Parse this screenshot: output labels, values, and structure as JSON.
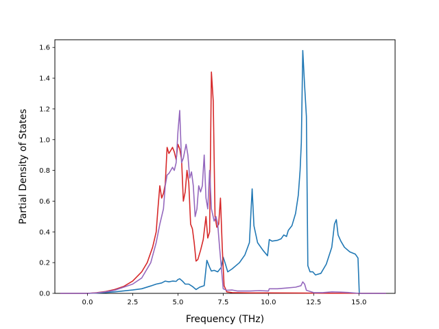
{
  "chart_data": {
    "type": "line",
    "title": "",
    "xlabel": "Frequency (THz)",
    "ylabel": "Partial Density of States",
    "xlim": [
      -1.8,
      17.0
    ],
    "ylim": [
      0.0,
      1.65
    ],
    "xticks": [
      0.0,
      2.5,
      5.0,
      7.5,
      10.0,
      12.5,
      15.0
    ],
    "xtick_labels": [
      "0.0",
      "2.5",
      "5.0",
      "7.5",
      "10.0",
      "12.5",
      "15.0"
    ],
    "yticks": [
      0.0,
      0.2,
      0.4,
      0.6,
      0.8,
      1.0,
      1.2,
      1.4,
      1.6
    ],
    "ytick_labels": [
      "0.0",
      "0.2",
      "0.4",
      "0.6",
      "0.8",
      "1.0",
      "1.2",
      "1.4",
      "1.6"
    ],
    "grid": false,
    "legend": false,
    "series": [
      {
        "color": "#1f77b4",
        "points": [
          [
            -1.5,
            0
          ],
          [
            0,
            0
          ],
          [
            0.5,
            0.002
          ],
          [
            1,
            0.006
          ],
          [
            1.5,
            0.01
          ],
          [
            2,
            0.016
          ],
          [
            2.5,
            0.022
          ],
          [
            3,
            0.03
          ],
          [
            3.5,
            0.048
          ],
          [
            3.8,
            0.06
          ],
          [
            4.1,
            0.068
          ],
          [
            4.3,
            0.08
          ],
          [
            4.5,
            0.075
          ],
          [
            4.7,
            0.08
          ],
          [
            4.9,
            0.078
          ],
          [
            5.0,
            0.09
          ],
          [
            5.1,
            0.095
          ],
          [
            5.25,
            0.08
          ],
          [
            5.4,
            0.06
          ],
          [
            5.6,
            0.06
          ],
          [
            5.8,
            0.045
          ],
          [
            6.0,
            0.025
          ],
          [
            6.2,
            0.04
          ],
          [
            6.45,
            0.05
          ],
          [
            6.6,
            0.215
          ],
          [
            6.75,
            0.17
          ],
          [
            6.85,
            0.145
          ],
          [
            7.0,
            0.15
          ],
          [
            7.2,
            0.14
          ],
          [
            7.4,
            0.17
          ],
          [
            7.5,
            0.235
          ],
          [
            7.6,
            0.2
          ],
          [
            7.75,
            0.14
          ],
          [
            8.0,
            0.16
          ],
          [
            8.4,
            0.2
          ],
          [
            8.7,
            0.25
          ],
          [
            8.95,
            0.33
          ],
          [
            9.1,
            0.68
          ],
          [
            9.2,
            0.44
          ],
          [
            9.4,
            0.33
          ],
          [
            9.7,
            0.28
          ],
          [
            9.95,
            0.245
          ],
          [
            10.05,
            0.35
          ],
          [
            10.2,
            0.34
          ],
          [
            10.5,
            0.345
          ],
          [
            10.7,
            0.355
          ],
          [
            10.85,
            0.38
          ],
          [
            11.0,
            0.37
          ],
          [
            11.1,
            0.41
          ],
          [
            11.3,
            0.44
          ],
          [
            11.5,
            0.52
          ],
          [
            11.65,
            0.64
          ],
          [
            11.75,
            0.8
          ],
          [
            11.82,
            0.98
          ],
          [
            11.9,
            1.58
          ],
          [
            12.0,
            1.35
          ],
          [
            12.1,
            1.15
          ],
          [
            12.18,
            0.18
          ],
          [
            12.3,
            0.14
          ],
          [
            12.45,
            0.14
          ],
          [
            12.6,
            0.12
          ],
          [
            12.9,
            0.13
          ],
          [
            13.2,
            0.19
          ],
          [
            13.5,
            0.3
          ],
          [
            13.65,
            0.45
          ],
          [
            13.75,
            0.48
          ],
          [
            13.85,
            0.38
          ],
          [
            14.0,
            0.34
          ],
          [
            14.2,
            0.3
          ],
          [
            14.5,
            0.27
          ],
          [
            14.8,
            0.255
          ],
          [
            14.95,
            0.23
          ],
          [
            15.02,
            0
          ],
          [
            16.5,
            0
          ]
        ]
      },
      {
        "color": "#d62728",
        "points": [
          [
            -1.5,
            0
          ],
          [
            0,
            0
          ],
          [
            0.5,
            0.004
          ],
          [
            1,
            0.012
          ],
          [
            1.5,
            0.025
          ],
          [
            2,
            0.045
          ],
          [
            2.5,
            0.08
          ],
          [
            3,
            0.14
          ],
          [
            3.3,
            0.2
          ],
          [
            3.6,
            0.3
          ],
          [
            3.8,
            0.4
          ],
          [
            3.9,
            0.56
          ],
          [
            4.0,
            0.7
          ],
          [
            4.1,
            0.62
          ],
          [
            4.2,
            0.65
          ],
          [
            4.3,
            0.71
          ],
          [
            4.4,
            0.95
          ],
          [
            4.5,
            0.91
          ],
          [
            4.6,
            0.93
          ],
          [
            4.7,
            0.95
          ],
          [
            4.8,
            0.92
          ],
          [
            4.9,
            0.87
          ],
          [
            5.0,
            0.97
          ],
          [
            5.1,
            0.94
          ],
          [
            5.2,
            0.87
          ],
          [
            5.3,
            0.6
          ],
          [
            5.4,
            0.66
          ],
          [
            5.5,
            0.8
          ],
          [
            5.6,
            0.72
          ],
          [
            5.7,
            0.45
          ],
          [
            5.8,
            0.42
          ],
          [
            5.9,
            0.33
          ],
          [
            6.0,
            0.21
          ],
          [
            6.1,
            0.22
          ],
          [
            6.25,
            0.28
          ],
          [
            6.4,
            0.35
          ],
          [
            6.55,
            0.5
          ],
          [
            6.65,
            0.36
          ],
          [
            6.75,
            0.4
          ],
          [
            6.85,
            1.44
          ],
          [
            6.95,
            1.25
          ],
          [
            7.05,
            0.5
          ],
          [
            7.15,
            0.43
          ],
          [
            7.25,
            0.45
          ],
          [
            7.35,
            0.62
          ],
          [
            7.45,
            0.3
          ],
          [
            7.55,
            0.05
          ],
          [
            7.7,
            0.01
          ],
          [
            8.0,
            0.005
          ],
          [
            9.0,
            0.003
          ],
          [
            10.0,
            0.003
          ],
          [
            12.0,
            0.002
          ],
          [
            13.0,
            0.001
          ],
          [
            16.5,
            0
          ]
        ]
      },
      {
        "color": "#9467bd",
        "points": [
          [
            -1.5,
            0
          ],
          [
            0,
            0
          ],
          [
            0.5,
            0.003
          ],
          [
            1,
            0.01
          ],
          [
            1.5,
            0.02
          ],
          [
            2,
            0.04
          ],
          [
            2.5,
            0.06
          ],
          [
            3,
            0.1
          ],
          [
            3.5,
            0.2
          ],
          [
            3.8,
            0.33
          ],
          [
            4.0,
            0.45
          ],
          [
            4.2,
            0.55
          ],
          [
            4.3,
            0.7
          ],
          [
            4.4,
            0.77
          ],
          [
            4.5,
            0.78
          ],
          [
            4.6,
            0.8
          ],
          [
            4.7,
            0.82
          ],
          [
            4.8,
            0.8
          ],
          [
            4.9,
            0.85
          ],
          [
            5.0,
            1.05
          ],
          [
            5.1,
            1.19
          ],
          [
            5.2,
            0.85
          ],
          [
            5.3,
            0.88
          ],
          [
            5.45,
            0.97
          ],
          [
            5.55,
            0.9
          ],
          [
            5.65,
            0.75
          ],
          [
            5.75,
            0.79
          ],
          [
            5.85,
            0.7
          ],
          [
            5.95,
            0.5
          ],
          [
            6.05,
            0.55
          ],
          [
            6.15,
            0.7
          ],
          [
            6.25,
            0.66
          ],
          [
            6.35,
            0.7
          ],
          [
            6.45,
            0.9
          ],
          [
            6.55,
            0.62
          ],
          [
            6.65,
            0.55
          ],
          [
            6.75,
            0.8
          ],
          [
            6.85,
            0.55
          ],
          [
            7.0,
            0.47
          ],
          [
            7.1,
            0.5
          ],
          [
            7.2,
            0.45
          ],
          [
            7.3,
            0.3
          ],
          [
            7.5,
            0.03
          ],
          [
            7.7,
            0.02
          ],
          [
            8.0,
            0.022
          ],
          [
            8.3,
            0.015
          ],
          [
            9.0,
            0.015
          ],
          [
            9.5,
            0.018
          ],
          [
            10.0,
            0.015
          ],
          [
            10.05,
            0.03
          ],
          [
            10.5,
            0.03
          ],
          [
            11.0,
            0.035
          ],
          [
            11.5,
            0.04
          ],
          [
            11.8,
            0.05
          ],
          [
            11.9,
            0.075
          ],
          [
            12.0,
            0.06
          ],
          [
            12.1,
            0.02
          ],
          [
            12.5,
            0.005
          ],
          [
            13.0,
            0.005
          ],
          [
            13.5,
            0.01
          ],
          [
            14.0,
            0.008
          ],
          [
            14.5,
            0.005
          ],
          [
            15.0,
            0
          ],
          [
            16.5,
            0
          ]
        ]
      }
    ]
  }
}
